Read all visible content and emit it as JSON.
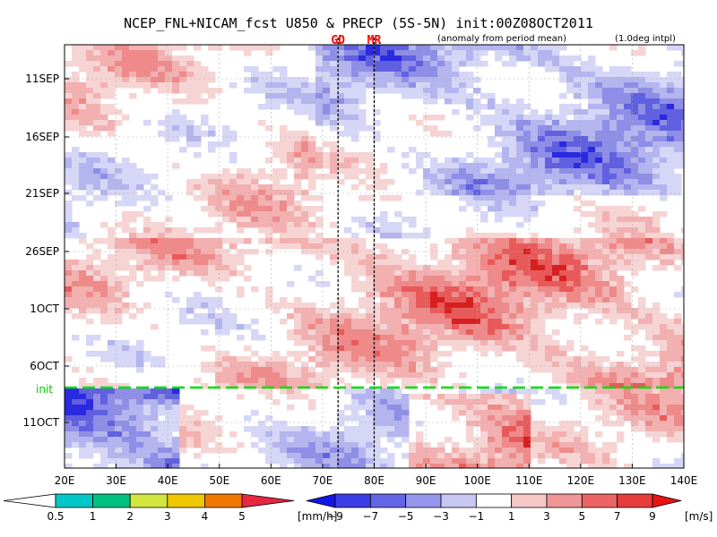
{
  "title": "NCEP_FNL+NICAM_fcst U850 & PRECP (5S-5N) init:00Z08OCT2011",
  "subtitle_left": "(anomaly from period mean)",
  "subtitle_right": "(1.0deg intpl)",
  "markers": [
    {
      "label": "GD",
      "lon": 73,
      "color": "#ff0000"
    },
    {
      "label": "MR",
      "lon": 80,
      "color": "#ff0000"
    }
  ],
  "init_label": "init",
  "colors": {
    "init_line": "#00dd00",
    "positive": [
      "#f6d4d4",
      "#f2b0b0",
      "#ee8a8a",
      "#e85a5a",
      "#d62020"
    ],
    "negative": [
      "#d6d6f6",
      "#b4b4ee",
      "#8e8ee6",
      "#6060e0",
      "#2a2ae0"
    ]
  },
  "chart_data": {
    "type": "heatmap",
    "description_axes": "Hovmoller: longitude (x) vs time (y, increasing downward)",
    "x_range": [
      20,
      140
    ],
    "x_ticks": [
      "20E",
      "30E",
      "40E",
      "50E",
      "60E",
      "70E",
      "80E",
      "90E",
      "100E",
      "110E",
      "120E",
      "130E",
      "140E"
    ],
    "y_ticks": [
      "11SEP",
      "16SEP",
      "21SEP",
      "26SEP",
      "1OCT",
      "6OCT",
      "11OCT"
    ],
    "init_date": "08OCT2011",
    "variables": [
      "U850 anomaly [m/s] (shaded)",
      "PRECP [mm/h] (shaded)"
    ],
    "precip_colorbar": {
      "levels": [
        "0.5",
        "1",
        "2",
        "3",
        "4",
        "5"
      ],
      "unit": "[mm/h]",
      "colors": [
        "#ffffff",
        "#00c8c8",
        "#00c080",
        "#d2e640",
        "#f0c800",
        "#f07800",
        "#e62840"
      ]
    },
    "wind_colorbar": {
      "levels": [
        "−9",
        "−7",
        "−5",
        "−3",
        "−1",
        "1",
        "3",
        "5",
        "7",
        "9"
      ],
      "unit": "[m/s]",
      "colors": [
        "#1414e6",
        "#3c3ce6",
        "#6464e6",
        "#9696ec",
        "#c8c8f4",
        "#ffffff",
        "#f6c8c8",
        "#f09696",
        "#ec6464",
        "#e63c3c",
        "#e61414"
      ]
    }
  }
}
